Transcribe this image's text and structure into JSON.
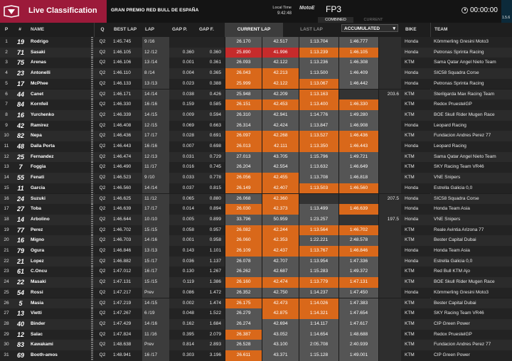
{
  "header": {
    "title": "Live Classification",
    "event": "GRAN PREMIO RED BULL DE ESPAÑA",
    "local_time_label": "Local Time",
    "local_time": "9:42:48",
    "brand": "MotoE",
    "session": "FP3",
    "seg_combined": "COMBINED",
    "seg_current": "CURRENT",
    "clock": "00:00:00",
    "side_label": "1.5.6",
    "brand_color": "#9c1a3a"
  },
  "columns": {
    "p": "P",
    "nr": "#",
    "name": "NAME",
    "q": "Q",
    "best_lap": "BEST LAP",
    "lap": "LAP",
    "gap_p": "GAP P.",
    "gap_f": "GAP F.",
    "current_lap": "CURRENT LAP",
    "last_lap": "LAST LAP",
    "accumulated": "ACCUMULATED",
    "bike": "BIKE",
    "team": "TEAM"
  },
  "rows": [
    {
      "p": "1",
      "nr": "19",
      "name": "Rodrigo",
      "q": "Q2",
      "best": "1:45.745",
      "lap": "9 /16",
      "gap_p": "",
      "gap_f": "",
      "s1": "26.170",
      "s2": "42.517",
      "s3": "1:13.704",
      "s4": "1:46.777",
      "speed": "",
      "bike": "Honda",
      "team": "Kömmerling Gresini Moto3",
      "c1": "grey",
      "c2": "grey",
      "c3": "grey",
      "c4": "grey"
    },
    {
      "p": "2",
      "nr": "71",
      "name": "Sasaki",
      "q": "Q2",
      "best": "1:46.105",
      "lap": "12 /12",
      "gap_p": "0.360",
      "gap_f": "0.360",
      "s1": "25.890",
      "s2": "41.996",
      "s3": "1:13.239",
      "s4": "1:46.105",
      "speed": "",
      "bike": "Honda",
      "team": "Petronas Sprinta Racing",
      "c1": "red",
      "c2": "red",
      "c3": "orange",
      "c4": "orange"
    },
    {
      "p": "3",
      "nr": "75",
      "name": "Arenas",
      "q": "Q2",
      "best": "1:46.106",
      "lap": "13 /14",
      "gap_p": "0.001",
      "gap_f": "0.361",
      "s1": "26.093",
      "s2": "42.122",
      "s3": "1:13.236",
      "s4": "1:46.308",
      "speed": "",
      "bike": "KTM",
      "team": "Sama Qatar Angel Nieto Team",
      "c1": "grey",
      "c2": "grey",
      "c3": "grey",
      "c4": "grey"
    },
    {
      "p": "4",
      "nr": "23",
      "name": "Antonelli",
      "q": "Q2",
      "best": "1:46.110",
      "lap": "8 /14",
      "gap_p": "0.004",
      "gap_f": "0.365",
      "s1": "26.043",
      "s2": "42.213",
      "s3": "1:13.500",
      "s4": "1:46.409",
      "speed": "",
      "bike": "Honda",
      "team": "SIC58 Squadra Corse",
      "c1": "orange",
      "c2": "orange",
      "c3": "grey",
      "c4": "grey"
    },
    {
      "p": "5",
      "nr": "17",
      "name": "McPhee",
      "q": "Q2",
      "best": "1:46.133",
      "lap": "13 /13",
      "gap_p": "0.023",
      "gap_f": "0.388",
      "s1": "25.999",
      "s2": "42.122",
      "s3": "1:13.067",
      "s4": "1:46.442",
      "speed": "",
      "bike": "Honda",
      "team": "Petronas Sprinta Racing",
      "c1": "orange",
      "c2": "orange",
      "c3": "orange",
      "c4": "grey"
    },
    {
      "p": "6",
      "nr": "44",
      "name": "Canet",
      "q": "Q2",
      "best": "1:46.171",
      "lap": "14 /14",
      "gap_p": "0.038",
      "gap_f": "0.426",
      "s1": "25.948",
      "s2": "42.209",
      "s3": "1:13.163",
      "s4": "",
      "speed": "203.6",
      "bike": "KTM",
      "team": "Sterilgarda Max Racing Team",
      "c1": "grey",
      "c2": "grey",
      "c3": "orange",
      "c4": "dark"
    },
    {
      "p": "7",
      "nr": "84",
      "name": "Kornfeil",
      "q": "Q2",
      "best": "1:46.330",
      "lap": "16 /16",
      "gap_p": "0.159",
      "gap_f": "0.585",
      "s1": "26.151",
      "s2": "42.453",
      "s3": "1:13.400",
      "s4": "1:46.330",
      "speed": "",
      "bike": "KTM",
      "team": "Redox PruestelGP",
      "c1": "orange",
      "c2": "orange",
      "c3": "orange",
      "c4": "orange"
    },
    {
      "p": "8",
      "nr": "16",
      "name": "Yurchenko",
      "q": "Q2",
      "best": "1:46.339",
      "lap": "14 /15",
      "gap_p": "0.009",
      "gap_f": "0.594",
      "s1": "26.310",
      "s2": "42.941",
      "s3": "1:14.776",
      "s4": "1:49.280",
      "speed": "",
      "bike": "KTM",
      "team": "BOE Skull Rider Mugen Race",
      "c1": "grey",
      "c2": "grey",
      "c3": "grey",
      "c4": "grey"
    },
    {
      "p": "9",
      "nr": "42",
      "name": "Ramirez",
      "q": "Q2",
      "best": "1:46.408",
      "lap": "12 /15",
      "gap_p": "0.069",
      "gap_f": "0.663",
      "s1": "26.314",
      "s2": "42.424",
      "s3": "1:13.847",
      "s4": "1:46.908",
      "speed": "",
      "bike": "Honda",
      "team": "Leopard Racing",
      "c1": "grey",
      "c2": "grey",
      "c3": "grey",
      "c4": "grey"
    },
    {
      "p": "10",
      "nr": "82",
      "name": "Nepa",
      "q": "Q2",
      "best": "1:46.436",
      "lap": "17 /17",
      "gap_p": "0.028",
      "gap_f": "0.691",
      "s1": "26.097",
      "s2": "42.268",
      "s3": "1:13.527",
      "s4": "1:46.436",
      "speed": "",
      "bike": "KTM",
      "team": "Fundacion Andres Perez 77",
      "c1": "orange",
      "c2": "orange",
      "c3": "orange",
      "c4": "orange"
    },
    {
      "p": "11",
      "nr": "48",
      "name": "Dalla Porta",
      "q": "Q2",
      "best": "1:46.443",
      "lap": "16 /16",
      "gap_p": "0.007",
      "gap_f": "0.698",
      "s1": "26.013",
      "s2": "42.111",
      "s3": "1:13.350",
      "s4": "1:46.443",
      "speed": "",
      "bike": "Honda",
      "team": "Leopard Racing",
      "c1": "orange",
      "c2": "orange",
      "c3": "orange",
      "c4": "orange"
    },
    {
      "p": "12",
      "nr": "25",
      "name": "Fernandez",
      "q": "Q2",
      "best": "1:46.474",
      "lap": "12 /13",
      "gap_p": "0.031",
      "gap_f": "0.729",
      "s1": "27.013",
      "s2": "43.705",
      "s3": "1:15.796",
      "s4": "1:49.721",
      "speed": "",
      "bike": "KTM",
      "team": "Sama Qatar Angel Nieto Team",
      "c1": "grey",
      "c2": "grey",
      "c3": "grey",
      "c4": "grey"
    },
    {
      "p": "13",
      "nr": "7",
      "name": "Foggia",
      "q": "Q2",
      "best": "1:46.490",
      "lap": "11 /17",
      "gap_p": "0.016",
      "gap_f": "0.745",
      "s1": "26.204",
      "s2": "42.554",
      "s3": "1:13.632",
      "s4": "1:46.649",
      "speed": "",
      "bike": "KTM",
      "team": "SKY Racing Team VR46",
      "c1": "grey",
      "c2": "grey",
      "c3": "grey",
      "c4": "grey"
    },
    {
      "p": "14",
      "nr": "55",
      "name": "Fenati",
      "q": "Q2",
      "best": "1:46.523",
      "lap": "9 /10",
      "gap_p": "0.033",
      "gap_f": "0.778",
      "s1": "26.056",
      "s2": "42.455",
      "s3": "1:13.708",
      "s4": "1:46.818",
      "speed": "",
      "bike": "KTM",
      "team": "VNE Snipers",
      "c1": "orange",
      "c2": "orange",
      "c3": "grey",
      "c4": "grey"
    },
    {
      "p": "15",
      "nr": "11",
      "name": "Garcia",
      "q": "Q2",
      "best": "1:46.560",
      "lap": "14 /14",
      "gap_p": "0.037",
      "gap_f": "0.815",
      "s1": "26.149",
      "s2": "42.407",
      "s3": "1:13.503",
      "s4": "1:46.560",
      "speed": "",
      "bike": "Honda",
      "team": "Estrella Galicia 0,0",
      "c1": "orange",
      "c2": "orange",
      "c3": "orange",
      "c4": "orange"
    },
    {
      "p": "16",
      "nr": "24",
      "name": "Suzuki",
      "q": "Q2",
      "best": "1:46.625",
      "lap": "11 /12",
      "gap_p": "0.065",
      "gap_f": "0.880",
      "s1": "26.068",
      "s2": "42.360",
      "s3": "",
      "s4": "",
      "speed": "207.5",
      "bike": "Honda",
      "team": "SIC58 Squadra Corse",
      "c1": "grey",
      "c2": "orange",
      "c3": "dark",
      "c4": "dark"
    },
    {
      "p": "17",
      "nr": "27",
      "name": "Toba",
      "q": "Q2",
      "best": "1:46.639",
      "lap": "17 /17",
      "gap_p": "0.014",
      "gap_f": "0.894",
      "s1": "26.030",
      "s2": "42.373",
      "s3": "1:13.499",
      "s4": "1:46.639",
      "speed": "",
      "bike": "Honda",
      "team": "Honda Team Asia",
      "c1": "orange",
      "c2": "orange",
      "c3": "grey",
      "c4": "orange"
    },
    {
      "p": "18",
      "nr": "14",
      "name": "Arbolino",
      "q": "Q2",
      "best": "1:46.644",
      "lap": "10 /10",
      "gap_p": "0.005",
      "gap_f": "0.899",
      "s1": "33.796",
      "s2": "50.959",
      "s3": "1:23.257",
      "s4": "",
      "speed": "197.5",
      "bike": "Honda",
      "team": "VNE Snipers",
      "c1": "grey",
      "c2": "grey",
      "c3": "grey",
      "c4": "dark"
    },
    {
      "p": "19",
      "nr": "77",
      "name": "Perez",
      "q": "Q2",
      "best": "1:46.702",
      "lap": "15 /15",
      "gap_p": "0.058",
      "gap_f": "0.957",
      "s1": "26.082",
      "s2": "42.244",
      "s3": "1:13.564",
      "s4": "1:46.702",
      "speed": "",
      "bike": "KTM",
      "team": "Reale Avintia Arizona 77",
      "c1": "orange",
      "c2": "orange",
      "c3": "orange",
      "c4": "orange"
    },
    {
      "p": "20",
      "nr": "16",
      "name": "Migno",
      "q": "Q2",
      "best": "1:46.703",
      "lap": "14 /16",
      "gap_p": "0.001",
      "gap_f": "0.958",
      "s1": "26.060",
      "s2": "42.353",
      "s3": "1:22.221",
      "s4": "2:48.578",
      "speed": "",
      "bike": "KTM",
      "team": "Bester Capital Dubai",
      "c1": "orange",
      "c2": "orange",
      "c3": "grey",
      "c4": "grey"
    },
    {
      "p": "21",
      "nr": "79",
      "name": "Ogura",
      "q": "Q2",
      "best": "1:46.846",
      "lap": "13 /13",
      "gap_p": "0.143",
      "gap_f": "1.101",
      "s1": "26.109",
      "s2": "42.437",
      "s3": "1:13.767",
      "s4": "1:46.846",
      "speed": "",
      "bike": "Honda",
      "team": "Honda Team Asia",
      "c1": "orange",
      "c2": "orange",
      "c3": "orange",
      "c4": "orange"
    },
    {
      "p": "22",
      "nr": "21",
      "name": "Lopez",
      "q": "Q2",
      "best": "1:46.882",
      "lap": "15 /17",
      "gap_p": "0.036",
      "gap_f": "1.137",
      "s1": "26.078",
      "s2": "42.707",
      "s3": "1:13.954",
      "s4": "1:47.336",
      "speed": "",
      "bike": "Honda",
      "team": "Estrella Galicia 0,0",
      "c1": "grey",
      "c2": "grey",
      "c3": "grey",
      "c4": "grey"
    },
    {
      "p": "23",
      "nr": "61",
      "name": "C.Oncu",
      "q": "Q2",
      "best": "1:47.012",
      "lap": "16 /17",
      "gap_p": "0.130",
      "gap_f": "1.267",
      "s1": "26.262",
      "s2": "42.687",
      "s3": "1:15.283",
      "s4": "1:49.372",
      "speed": "",
      "bike": "KTM",
      "team": "Red Bull KTM Ajo",
      "c1": "grey",
      "c2": "grey",
      "c3": "grey",
      "c4": "grey"
    },
    {
      "p": "24",
      "nr": "22",
      "name": "Masaki",
      "q": "Q2",
      "best": "1:47.131",
      "lap": "15 /15",
      "gap_p": "0.119",
      "gap_f": "1.386",
      "s1": "26.160",
      "s2": "42.474",
      "s3": "1:13.779",
      "s4": "1:47.131",
      "speed": "",
      "bike": "KTM",
      "team": "BOE Skull Rider Mugen Race",
      "c1": "orange",
      "c2": "orange",
      "c3": "orange",
      "c4": "orange"
    },
    {
      "p": "25",
      "nr": "54",
      "name": "Rossi",
      "q": "Q2",
      "best": "1:47.217",
      "lap": "Prev",
      "gap_p": "0.086",
      "gap_f": "1.472",
      "s1": "26.352",
      "s2": "42.750",
      "s3": "1:14.237",
      "s4": "1:47.450",
      "speed": "",
      "bike": "Honda",
      "team": "Kömmerling Gresini Moto3",
      "c1": "grey",
      "c2": "grey",
      "c3": "grey",
      "c4": "grey"
    },
    {
      "p": "26",
      "nr": "5",
      "name": "Masia",
      "q": "Q2",
      "best": "1:47.219",
      "lap": "14 /15",
      "gap_p": "0.002",
      "gap_f": "1.474",
      "s1": "26.175",
      "s2": "42.473",
      "s3": "1:14.026",
      "s4": "1:47.383",
      "speed": "",
      "bike": "KTM",
      "team": "Bester Capital Dubai",
      "c1": "orange",
      "c2": "orange",
      "c3": "orange",
      "c4": "grey"
    },
    {
      "p": "27",
      "nr": "13",
      "name": "Vietti",
      "q": "Q2",
      "best": "1:47.267",
      "lap": "6 /19",
      "gap_p": "0.048",
      "gap_f": "1.522",
      "s1": "26.279",
      "s2": "42.875",
      "s3": "1:14.321",
      "s4": "1:47.654",
      "speed": "",
      "bike": "KTM",
      "team": "SKY Racing Team VR46",
      "c1": "grey",
      "c2": "orange",
      "c3": "orange",
      "c4": "grey"
    },
    {
      "p": "28",
      "nr": "40",
      "name": "Binder",
      "q": "Q2",
      "best": "1:47.429",
      "lap": "14 /16",
      "gap_p": "0.162",
      "gap_f": "1.684",
      "s1": "26.274",
      "s2": "42.694",
      "s3": "1:14.117",
      "s4": "1:47.617",
      "speed": "",
      "bike": "KTM",
      "team": "CIP Green Power",
      "c1": "grey",
      "c2": "grey",
      "c3": "grey",
      "c4": "grey"
    },
    {
      "p": "29",
      "nr": "12",
      "name": "Salac",
      "q": "Q2",
      "best": "1:47.824",
      "lap": "11 /16",
      "gap_p": "0.395",
      "gap_f": "2.079",
      "s1": "26.387",
      "s2": "43.052",
      "s3": "1:14.654",
      "s4": "1:48.688",
      "speed": "",
      "bike": "KTM",
      "team": "Redox PruestelGP",
      "c1": "orange",
      "c2": "grey",
      "c3": "grey",
      "c4": "grey"
    },
    {
      "p": "30",
      "nr": "83",
      "name": "Kawakami",
      "q": "Q2",
      "best": "1:48.638",
      "lap": "Prev",
      "gap_p": "0.814",
      "gap_f": "2.893",
      "s1": "26.528",
      "s2": "43.100",
      "s3": "2:05.708",
      "s4": "2:40.939",
      "speed": "",
      "bike": "KTM",
      "team": "Fundacion Andres Perez 77",
      "c1": "grey",
      "c2": "grey",
      "c3": "grey",
      "c4": "grey"
    },
    {
      "p": "31",
      "nr": "69",
      "name": "Booth-amos",
      "q": "Q2",
      "best": "1:48.941",
      "lap": "16 /17",
      "gap_p": "0.303",
      "gap_f": "3.196",
      "s1": "26.611",
      "s2": "43.371",
      "s3": "1:15.128",
      "s4": "1:49.001",
      "speed": "",
      "bike": "KTM",
      "team": "CIP Green Power",
      "c1": "orange",
      "c2": "grey",
      "c3": "grey",
      "c4": "grey"
    }
  ],
  "colors": {
    "personal_best": "#d9681a",
    "overall_best": "#c62b2b",
    "sector_normal": "#555555"
  }
}
